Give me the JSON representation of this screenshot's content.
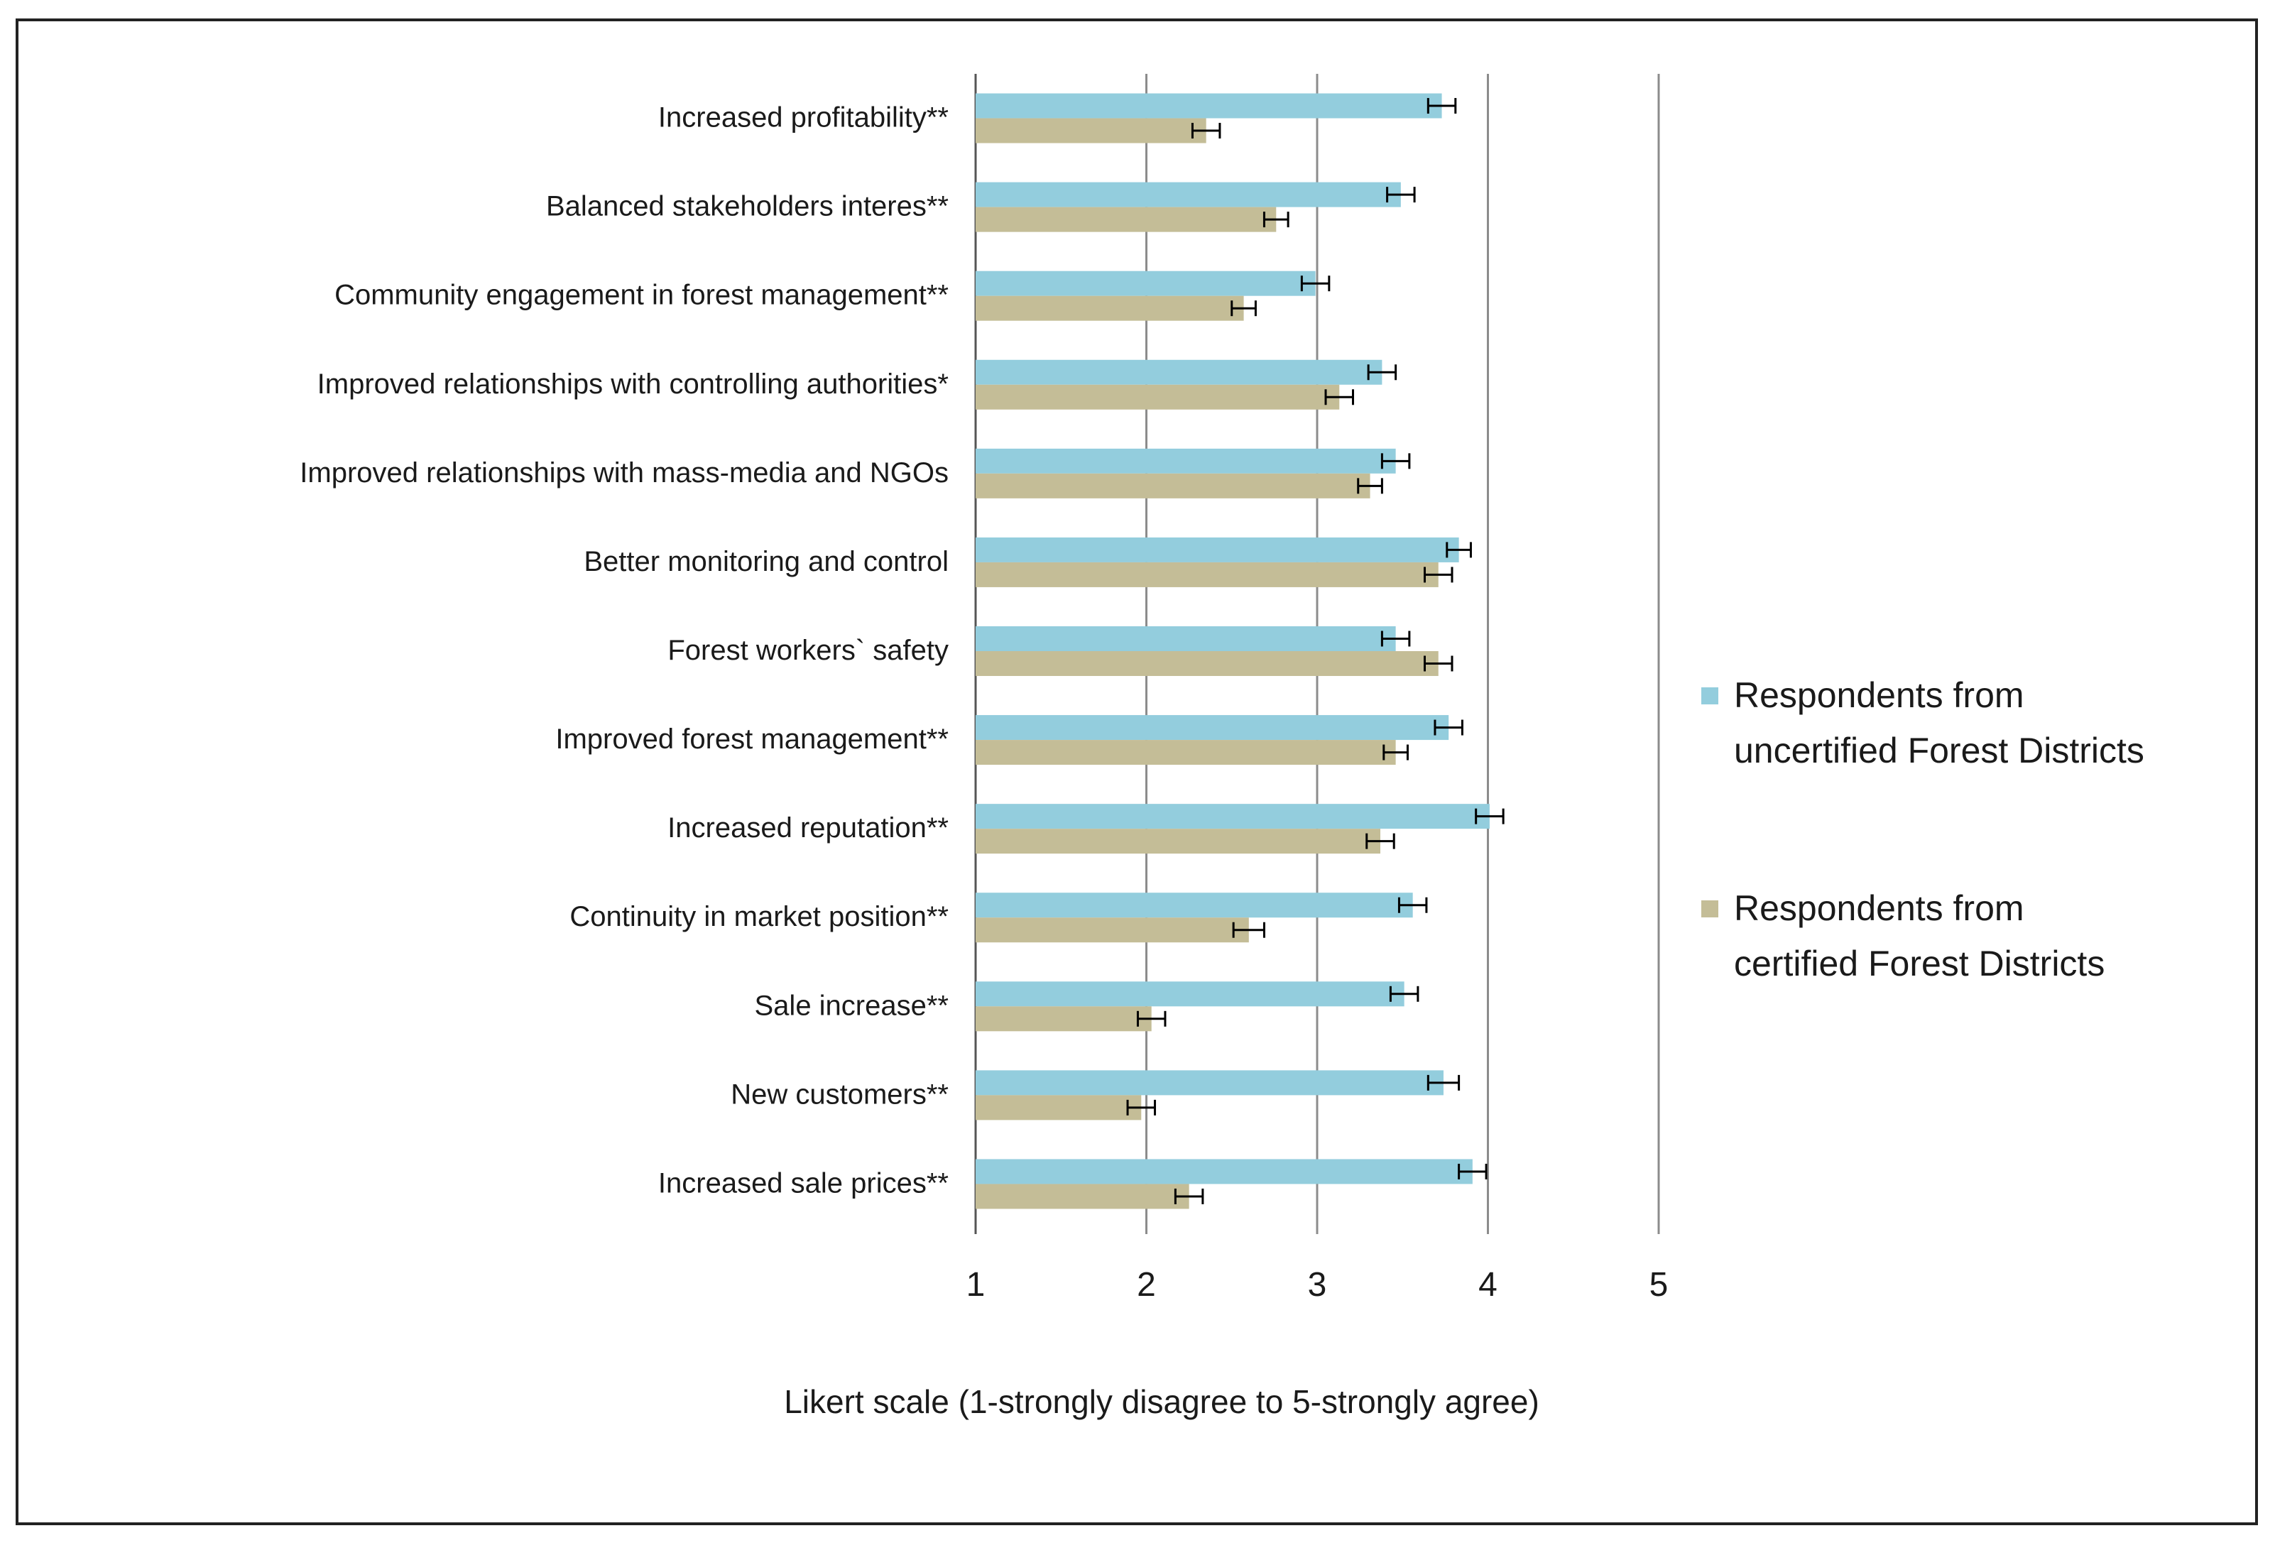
{
  "chart_data": {
    "type": "bar",
    "orientation": "horizontal",
    "title": "",
    "xlabel": "Likert scale (1-strongly disagree to 5-strongly agree)",
    "ylabel": "",
    "xlim": [
      1,
      5
    ],
    "xticks": [
      1,
      2,
      3,
      4,
      5
    ],
    "grid": true,
    "legend_position": "right",
    "categories": [
      "Increased profitability**",
      "Balanced stakeholders interes**",
      "Community engagement in forest management**",
      "Improved relationships with controlling authorities*",
      "Improved relationships with mass-media and NGOs",
      "Better monitoring and control",
      "Forest workers` safety",
      "Improved forest management**",
      "Increased reputation**",
      "Continuity in market position**",
      "Sale increase**",
      "New customers**",
      "Increased sale prices**"
    ],
    "series": [
      {
        "name": "Respondents from uncertified Forest Districts",
        "legend_lines": [
          "Respondents from",
          "uncertified Forest Districts"
        ],
        "color": "#93CDDD",
        "values": [
          3.73,
          3.49,
          2.99,
          3.38,
          3.46,
          3.83,
          3.46,
          3.77,
          4.01,
          3.56,
          3.51,
          3.74,
          3.91
        ],
        "errors": [
          0.08,
          0.08,
          0.08,
          0.08,
          0.08,
          0.07,
          0.08,
          0.08,
          0.08,
          0.08,
          0.08,
          0.09,
          0.08
        ]
      },
      {
        "name": "Respondents from certified Forest Districts",
        "legend_lines": [
          "Respondents from",
          "certified Forest Districts"
        ],
        "color": "#C4BD97",
        "values": [
          2.35,
          2.76,
          2.57,
          3.13,
          3.31,
          3.71,
          3.71,
          3.46,
          3.37,
          2.6,
          2.03,
          1.97,
          2.25
        ],
        "errors": [
          0.08,
          0.07,
          0.07,
          0.08,
          0.07,
          0.08,
          0.08,
          0.07,
          0.08,
          0.09,
          0.08,
          0.08,
          0.08
        ]
      }
    ]
  }
}
